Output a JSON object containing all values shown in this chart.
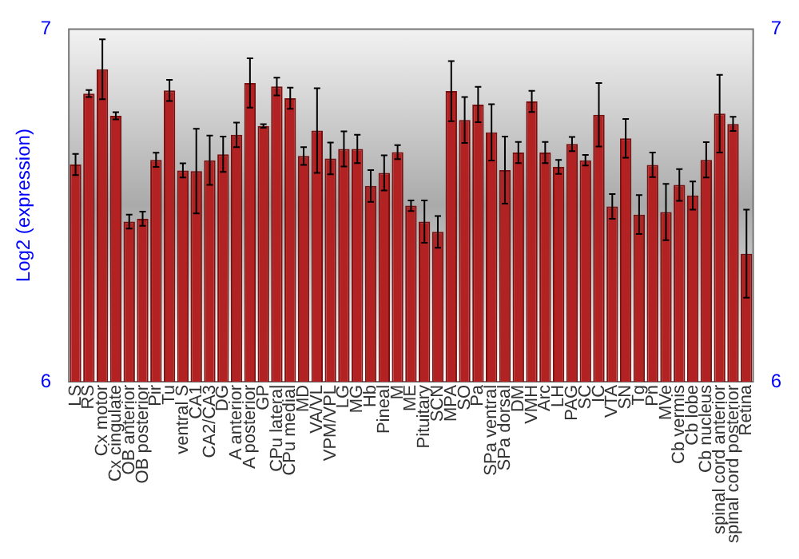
{
  "chart_data": {
    "type": "bar",
    "ylabel": "Log2 (expression)",
    "categories": [
      "LS",
      "RS",
      "Cx motor",
      "Cx cingulate",
      "OB anterior",
      "OB posterior",
      "Pir",
      "Tu",
      "ventral S",
      "CA1",
      "CA2/CA3",
      "DG",
      "A anterior",
      "A posterior",
      "GP",
      "CPu lateral",
      "CPu medial",
      "MD",
      "VA/VL",
      "VPM/VPL",
      "LG",
      "MG",
      "Hb",
      "Pineal",
      "M",
      "ME",
      "Pituitary",
      "SCN",
      "MPA",
      "SO",
      "Pa",
      "SPa ventral",
      "SPa dorsal",
      "DM",
      "VMH",
      "Arc",
      "LH",
      "PAG",
      "SC",
      "IC",
      "VTA",
      "SN",
      "Tg",
      "Pn",
      "MVe",
      "Cb vermis",
      "Cb lobe",
      "Cb nucleus",
      "spinal cord anterior",
      "spinal cord posterior",
      "Retina"
    ],
    "values": [
      6.616,
      6.817,
      6.886,
      6.754,
      6.454,
      6.462,
      6.629,
      6.826,
      6.599,
      6.597,
      6.628,
      6.645,
      6.7,
      6.847,
      6.725,
      6.837,
      6.804,
      6.64,
      6.712,
      6.633,
      6.66,
      6.66,
      6.555,
      6.592,
      6.651,
      6.499,
      6.454,
      6.425,
      6.824,
      6.742,
      6.786,
      6.707,
      6.6,
      6.65,
      6.795,
      6.65,
      6.609,
      6.674,
      6.628,
      6.757,
      6.497,
      6.69,
      6.474,
      6.615,
      6.481,
      6.558,
      6.528,
      6.629,
      6.76,
      6.731,
      6.363
    ],
    "errors": [
      0.03,
      0.01,
      0.085,
      0.01,
      0.02,
      0.02,
      0.02,
      0.03,
      0.02,
      0.12,
      0.07,
      0.05,
      0.035,
      0.07,
      0.005,
      0.025,
      0.03,
      0.025,
      0.12,
      0.045,
      0.05,
      0.04,
      0.045,
      0.05,
      0.02,
      0.015,
      0.06,
      0.045,
      0.085,
      0.065,
      0.05,
      0.08,
      0.095,
      0.03,
      0.03,
      0.03,
      0.02,
      0.02,
      0.015,
      0.09,
      0.035,
      0.055,
      0.055,
      0.035,
      0.08,
      0.045,
      0.04,
      0.05,
      0.11,
      0.02,
      0.125
    ],
    "color": "#b22222",
    "ylim": [
      6,
      7
    ],
    "yticks": [
      6,
      7
    ],
    "y2lim": [
      6,
      7
    ],
    "y2ticks": [
      6,
      7
    ],
    "grid": false,
    "legend": false
  }
}
